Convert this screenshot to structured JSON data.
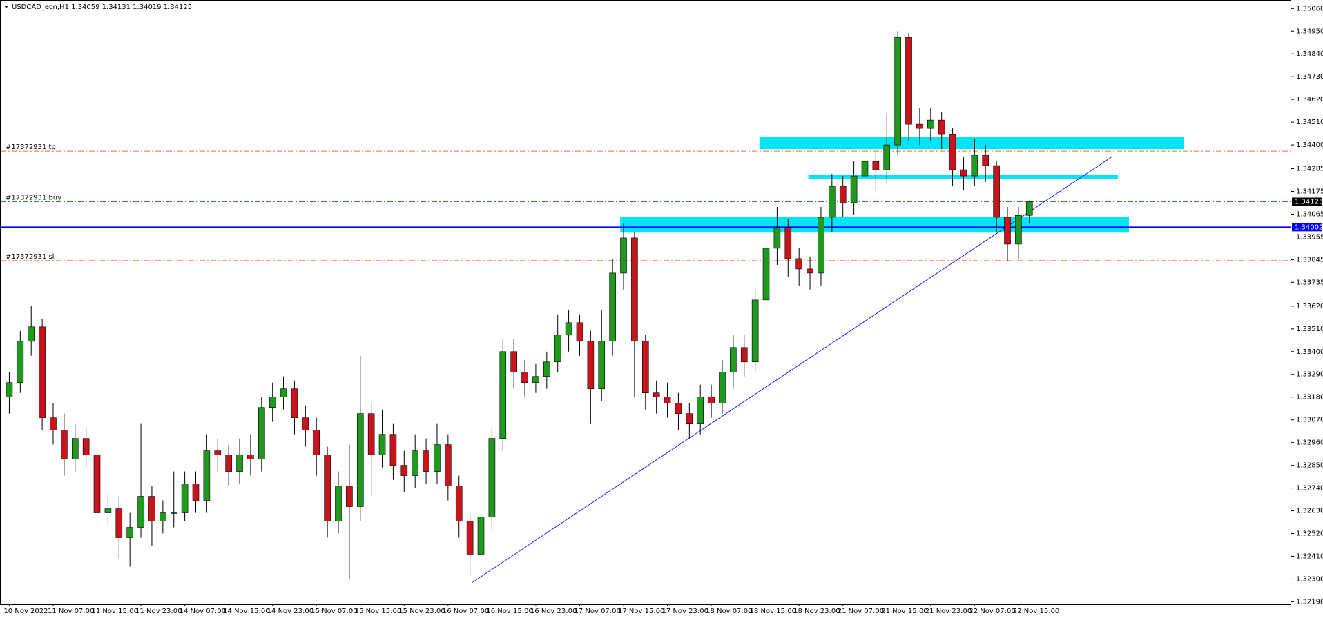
{
  "chart_data": {
    "type": "candlestick",
    "title": "USDCAD_ecn,H1  1.34059 1.34131 1.34019 1.34125",
    "categories": [
      "10 Nov 2022",
      null,
      null,
      null,
      "11 Nov 07:00",
      null,
      null,
      null,
      "11 Nov 15:00",
      null,
      null,
      null,
      "11 Nov 23:00",
      null,
      null,
      null,
      "14 Nov 07:00",
      null,
      null,
      null,
      "14 Nov 15:00",
      null,
      null,
      null,
      "14 Nov 23:00",
      null,
      null,
      null,
      "15 Nov 07:00",
      null,
      null,
      null,
      "15 Nov 15:00",
      null,
      null,
      null,
      "15 Nov 23:00",
      null,
      null,
      null,
      "16 Nov 07:00",
      null,
      null,
      null,
      "16 Nov 15:00",
      null,
      null,
      null,
      "16 Nov 23:00",
      null,
      null,
      null,
      "17 Nov 07:00",
      null,
      null,
      null,
      "17 Nov 15:00",
      null,
      null,
      null,
      "17 Nov 23:00",
      null,
      null,
      null,
      "18 Nov 07:00",
      null,
      null,
      null,
      "18 Nov 15:00",
      null,
      null,
      null,
      "18 Nov 23:00",
      null,
      null,
      null,
      "21 Nov 07:00",
      null,
      null,
      null,
      "21 Nov 15:00",
      null,
      null,
      null,
      "21 Nov 23:00",
      null,
      null,
      null,
      "22 Nov 07:00",
      null,
      null,
      null,
      "22 Nov 15:00",
      null
    ],
    "open": [
      1.3318,
      1.3325,
      1.3345,
      1.3352,
      1.3308,
      1.3302,
      1.3288,
      1.3298,
      1.329,
      1.3262,
      1.3264,
      1.325,
      1.3255,
      1.327,
      1.3258,
      1.3262,
      1.3262,
      1.3276,
      1.3268,
      1.3292,
      1.329,
      1.3282,
      1.329,
      1.3288,
      1.3313,
      1.3318,
      1.3322,
      1.3308,
      1.3302,
      1.329,
      1.3258,
      1.3275,
      1.3265,
      1.331,
      1.329,
      1.33,
      1.3285,
      1.328,
      1.3292,
      1.3282,
      1.3295,
      1.3275,
      1.3258,
      1.3242,
      1.326,
      1.3298,
      1.334,
      1.333,
      1.3325,
      1.3328,
      1.3335,
      1.3348,
      1.3354,
      1.3345,
      1.3322,
      1.3345,
      1.3378,
      1.3395,
      1.3345,
      1.332,
      1.3318,
      1.3315,
      1.331,
      1.3305,
      1.3318,
      1.3315,
      1.333,
      1.3342,
      1.3335,
      1.3365,
      1.339,
      1.34,
      1.3385,
      1.338,
      1.3378,
      1.3405,
      1.342,
      1.3412,
      1.3425,
      1.3432,
      1.3428,
      1.344,
      1.3492,
      1.345,
      1.3448,
      1.3452,
      1.3445,
      1.3428,
      1.3425,
      1.3435,
      1.343,
      1.3405,
      1.3392,
      1.34059
    ],
    "high": [
      1.333,
      1.335,
      1.3362,
      1.3356,
      1.3315,
      1.331,
      1.3305,
      1.3303,
      1.3295,
      1.3272,
      1.327,
      1.3262,
      1.3305,
      1.3275,
      1.3268,
      1.3282,
      1.3282,
      1.3282,
      1.33,
      1.3298,
      1.3295,
      1.3298,
      1.33,
      1.3318,
      1.3325,
      1.3328,
      1.3326,
      1.3314,
      1.3308,
      1.3294,
      1.3282,
      1.3295,
      1.3338,
      1.3315,
      1.3312,
      1.3305,
      1.3292,
      1.33,
      1.3298,
      1.3305,
      1.33,
      1.328,
      1.3262,
      1.3266,
      1.3303,
      1.3346,
      1.3346,
      1.3336,
      1.3334,
      1.334,
      1.3358,
      1.336,
      1.3358,
      1.335,
      1.336,
      1.3385,
      1.3402,
      1.3398,
      1.3348,
      1.3326,
      1.3325,
      1.332,
      1.3315,
      1.3324,
      1.3324,
      1.3336,
      1.3348,
      1.3348,
      1.337,
      1.3398,
      1.341,
      1.3404,
      1.339,
      1.3386,
      1.341,
      1.3426,
      1.3425,
      1.3432,
      1.3442,
      1.3438,
      1.3455,
      1.3495,
      1.3494,
      1.3458,
      1.3458,
      1.3456,
      1.3448,
      1.3434,
      1.3443,
      1.344,
      1.3432,
      1.341,
      1.341,
      1.34131
    ],
    "low": [
      1.331,
      1.332,
      1.3338,
      1.3302,
      1.3295,
      1.328,
      1.3282,
      1.3284,
      1.3255,
      1.3256,
      1.324,
      1.3236,
      1.325,
      1.3246,
      1.3252,
      1.3255,
      1.3258,
      1.3262,
      1.3262,
      1.3282,
      1.3275,
      1.3276,
      1.328,
      1.3282,
      1.3306,
      1.3312,
      1.33,
      1.3294,
      1.328,
      1.325,
      1.3252,
      1.323,
      1.3258,
      1.327,
      1.3284,
      1.3278,
      1.3272,
      1.3274,
      1.3276,
      1.3276,
      1.3268,
      1.325,
      1.3232,
      1.3236,
      1.3254,
      1.3292,
      1.3322,
      1.3318,
      1.332,
      1.3322,
      1.333,
      1.334,
      1.3338,
      1.3305,
      1.3316,
      1.3338,
      1.337,
      1.3318,
      1.3312,
      1.331,
      1.3308,
      1.3302,
      1.3298,
      1.33,
      1.3308,
      1.331,
      1.3322,
      1.3328,
      1.333,
      1.3358,
      1.3382,
      1.3376,
      1.3372,
      1.337,
      1.3372,
      1.3398,
      1.3405,
      1.3406,
      1.3418,
      1.3418,
      1.3422,
      1.3435,
      1.3442,
      1.344,
      1.3442,
      1.3438,
      1.342,
      1.3418,
      1.342,
      1.3422,
      1.3398,
      1.3384,
      1.3385,
      1.34019
    ],
    "close": [
      1.3325,
      1.3345,
      1.3352,
      1.3308,
      1.3302,
      1.3288,
      1.3298,
      1.329,
      1.3262,
      1.3264,
      1.325,
      1.3255,
      1.327,
      1.3258,
      1.3262,
      1.3262,
      1.3276,
      1.3268,
      1.3292,
      1.329,
      1.3282,
      1.329,
      1.3288,
      1.3313,
      1.3318,
      1.3322,
      1.3308,
      1.3302,
      1.329,
      1.3258,
      1.3275,
      1.3265,
      1.331,
      1.329,
      1.33,
      1.3285,
      1.328,
      1.3292,
      1.3282,
      1.3295,
      1.3275,
      1.3258,
      1.3242,
      1.326,
      1.3298,
      1.334,
      1.333,
      1.3325,
      1.3328,
      1.3335,
      1.3348,
      1.3354,
      1.3345,
      1.3322,
      1.3345,
      1.3378,
      1.3395,
      1.3345,
      1.332,
      1.3318,
      1.3315,
      1.331,
      1.3305,
      1.3318,
      1.3315,
      1.333,
      1.3342,
      1.3335,
      1.3365,
      1.339,
      1.34,
      1.3385,
      1.338,
      1.3378,
      1.3405,
      1.342,
      1.3412,
      1.3425,
      1.3432,
      1.3428,
      1.344,
      1.3492,
      1.345,
      1.3448,
      1.3452,
      1.3445,
      1.3428,
      1.3425,
      1.3435,
      1.343,
      1.3405,
      1.3392,
      1.34059,
      1.34125
    ],
    "up_color": "#1f9a1f",
    "down_color": "#c8141c",
    "ylim": [
      1.32178,
      1.35101
    ],
    "yticks": [
      {
        "value": 1.3506,
        "label": "1.35060"
      },
      {
        "value": 1.3495,
        "label": "1.34950"
      },
      {
        "value": 1.3484,
        "label": "1.34840"
      },
      {
        "value": 1.3473,
        "label": "1.34730"
      },
      {
        "value": 1.3462,
        "label": "1.34620"
      },
      {
        "value": 1.3451,
        "label": "1.34510"
      },
      {
        "value": 1.344,
        "label": "1.34400"
      },
      1.34285,
      1.34175,
      1.34065,
      1.33955,
      1.33845,
      1.33735,
      {
        "value": 1.3362,
        "label": "1.33620"
      },
      {
        "value": 1.3351,
        "label": "1.33510"
      },
      {
        "value": 1.334,
        "label": "1.33400"
      },
      {
        "value": 1.3329,
        "label": "1.33290"
      },
      {
        "value": 1.3318,
        "label": "1.33180"
      },
      {
        "value": 1.3307,
        "label": "1.33070"
      },
      {
        "value": 1.3296,
        "label": "1.32960"
      },
      {
        "value": 1.3285,
        "label": "1.32850"
      },
      {
        "value": 1.3274,
        "label": "1.32740"
      },
      {
        "value": 1.3263,
        "label": "1.32630"
      },
      {
        "value": 1.3252,
        "label": "1.32520"
      },
      {
        "value": 1.3241,
        "label": "1.32410"
      },
      {
        "value": 1.323,
        "label": "1.32300"
      },
      {
        "value": 1.3219,
        "label": "1.32190"
      }
    ],
    "grid": false,
    "levels": [
      {
        "label": "#17372931 tp",
        "value": 1.3437,
        "color": "#ff6a33"
      },
      {
        "label": "#17372931 buy",
        "value": 1.34125,
        "color": "#2e8b2e"
      },
      {
        "label": "#17372931 sl",
        "value": 1.3384,
        "color": "#ff6a33"
      }
    ],
    "hline": {
      "value": 1.34002,
      "color": "#0000ff"
    },
    "zones": [
      {
        "top": 1.3444,
        "bottom": 1.3438
      },
      {
        "top": 1.34257,
        "bottom": 1.34237
      },
      {
        "top": 1.34053,
        "bottom": 1.33976
      }
    ],
    "zone_color": "#00e5f5",
    "trendline": {
      "start": 1.32284,
      "end": 1.34343,
      "color": "#1a1aff"
    }
  }
}
